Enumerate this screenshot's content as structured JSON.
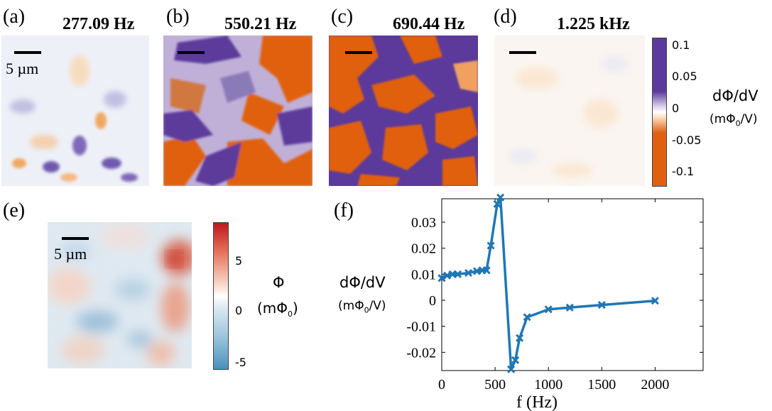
{
  "panels": [
    {
      "label": "(a)",
      "freq": "277.09 Hz",
      "scalebar_label": "5 µm"
    },
    {
      "label": "(b)",
      "freq": "550.21 Hz"
    },
    {
      "label": "(c)",
      "freq": "690.44 Hz"
    },
    {
      "label": "(d)",
      "freq": "1.225 kHz"
    }
  ],
  "top_colorbar": {
    "title": "dΦ/dV",
    "unit_pre": "(mΦ",
    "unit_sub": "0",
    "unit_post": "/V)",
    "ticks": [
      "0.1",
      "0.05",
      "0",
      "-0.05",
      "-0.1"
    ],
    "colors": {
      "positive": "#5b3a9b",
      "zero": "#ffffff",
      "negative": "#e06010"
    }
  },
  "panel_e": {
    "label": "(e)",
    "scalebar_label": "5 µm",
    "colorbar": {
      "title": "Φ",
      "unit_pre": "(mΦ",
      "unit_sub": "0",
      "unit_post": ")",
      "ticks": [
        "5",
        "0",
        "-5"
      ],
      "colors": {
        "positive": "#c0161c",
        "zero": "#ffffff",
        "negative": "#4a8fbd"
      }
    }
  },
  "panel_f": {
    "label": "(f)"
  },
  "chart_data": {
    "type": "line",
    "title": "",
    "xlabel": "f (Hz)",
    "ylabel": "dΦ/dV",
    "ylabel_unit_pre": "(mΦ",
    "ylabel_unit_sub": "0",
    "ylabel_unit_post": "/V)",
    "xlim": [
      0,
      2450
    ],
    "ylim": [
      -0.027,
      0.039
    ],
    "xticks": [
      0,
      500,
      1000,
      1500,
      2000
    ],
    "xtick_labels": [
      "0",
      "500",
      "1000",
      "1500",
      "2000"
    ],
    "yticks": [
      -0.02,
      -0.01,
      0,
      0.01,
      0.02,
      0.03
    ],
    "ytick_labels": [
      "-0.02",
      "-0.01",
      "0",
      "0.01",
      "0.02",
      "0.03"
    ],
    "color": "#1f77b4",
    "series": [
      {
        "name": "dΦ/dV",
        "x": [
          0,
          50,
          100,
          150,
          250,
          330,
          380,
          420,
          460,
          520,
          550,
          650,
          690,
          730,
          800,
          1000,
          1200,
          1500,
          2000
        ],
        "y": [
          0.0085,
          0.0095,
          0.01,
          0.01,
          0.0105,
          0.0112,
          0.0115,
          0.0115,
          0.021,
          0.037,
          0.0395,
          -0.0265,
          -0.023,
          -0.0145,
          -0.0065,
          -0.0035,
          -0.0028,
          -0.0018,
          -0.0002
        ]
      }
    ]
  }
}
